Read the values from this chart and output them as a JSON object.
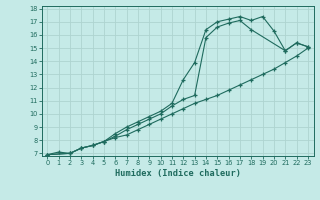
{
  "xlabel": "Humidex (Indice chaleur)",
  "background_color": "#c5eae7",
  "line_color": "#1f6b5e",
  "grid_color": "#aed4d0",
  "xlim": [
    -0.5,
    23.5
  ],
  "ylim": [
    6.8,
    18.2
  ],
  "xticks": [
    0,
    1,
    2,
    3,
    4,
    5,
    6,
    7,
    8,
    9,
    10,
    11,
    12,
    13,
    14,
    15,
    16,
    17,
    18,
    19,
    20,
    21,
    22,
    23
  ],
  "yticks": [
    7,
    8,
    9,
    10,
    11,
    12,
    13,
    14,
    15,
    16,
    17,
    18
  ],
  "line1_x": [
    0,
    1,
    2,
    3,
    4,
    5,
    6,
    7,
    8,
    9,
    10,
    11,
    12,
    13,
    14,
    15,
    16,
    17,
    18,
    19,
    20,
    21,
    22,
    23
  ],
  "line1_y": [
    6.9,
    7.1,
    7.0,
    7.4,
    7.6,
    7.9,
    8.2,
    8.4,
    8.8,
    9.2,
    9.6,
    10.0,
    10.4,
    10.8,
    11.1,
    11.4,
    11.8,
    12.2,
    12.6,
    13.0,
    13.4,
    13.9,
    14.4,
    15.0
  ],
  "line2_x": [
    0,
    2,
    3,
    4,
    5,
    6,
    7,
    8,
    9,
    10,
    11,
    12,
    13,
    14,
    15,
    16,
    17,
    18,
    19,
    20,
    21,
    22,
    23
  ],
  "line2_y": [
    6.9,
    7.0,
    7.4,
    7.6,
    7.9,
    8.5,
    9.0,
    9.4,
    9.8,
    10.2,
    10.8,
    12.6,
    13.9,
    16.4,
    17.0,
    17.2,
    17.4,
    17.1,
    17.4,
    16.3,
    14.8,
    15.4,
    15.1
  ],
  "line3_x": [
    0,
    2,
    3,
    4,
    5,
    6,
    7,
    8,
    9,
    10,
    11,
    12,
    13,
    14,
    15,
    16,
    17,
    18,
    21,
    22,
    23
  ],
  "line3_y": [
    6.9,
    7.0,
    7.4,
    7.6,
    7.9,
    8.3,
    8.8,
    9.2,
    9.6,
    10.0,
    10.6,
    11.1,
    11.4,
    15.8,
    16.6,
    16.9,
    17.1,
    16.4,
    14.8,
    15.4,
    15.1
  ]
}
